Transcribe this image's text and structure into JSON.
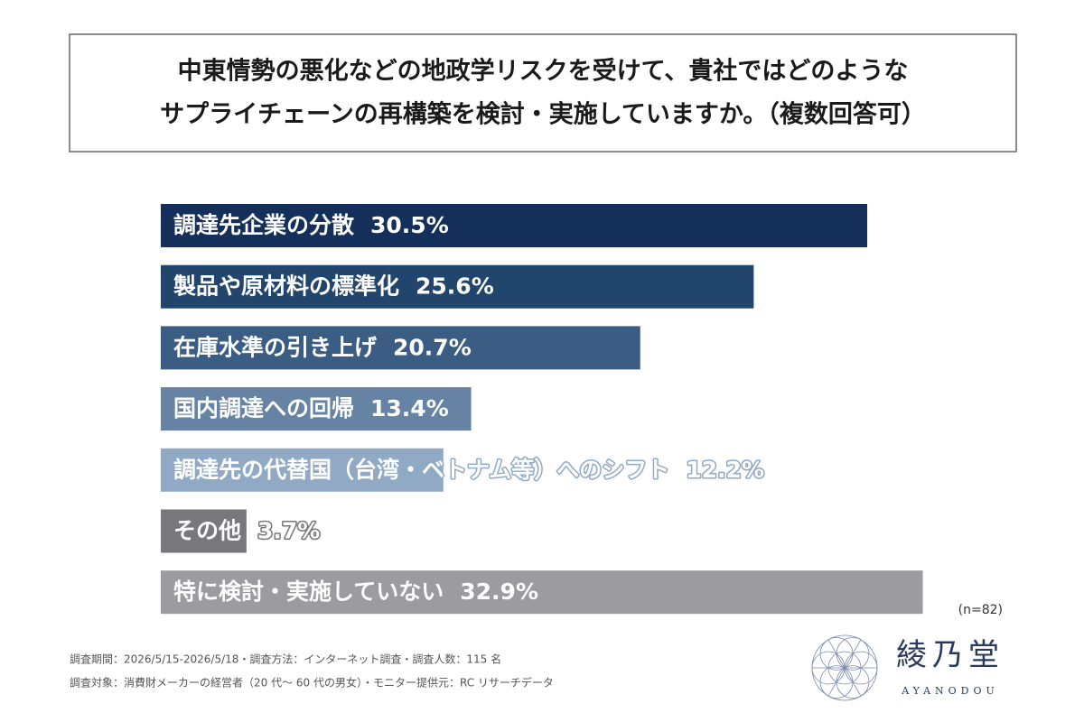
{
  "chart_data": {
    "type": "hbar",
    "title": [
      "中東情勢の悪化などの地政学リスクを受けて、貴社ではどのような",
      "サプライチェーンの再構築を検討・実施していますか。（複数回答可）"
    ],
    "categories": [
      "調達先企業の分散",
      "製品や原材料の標準化",
      "在庫水準の引き上げ",
      "国内調達への回帰",
      "調達先の代替国（台湾・ベトナム等）へのシフト",
      "その他",
      "特に検討・実施していない"
    ],
    "values": [
      30.5,
      25.6,
      20.7,
      13.4,
      12.2,
      3.7,
      32.9
    ],
    "value_labels": [
      "30.5%",
      "25.6%",
      "20.7%",
      "13.4%",
      "12.2%",
      "3.7%",
      "32.9%"
    ],
    "colors": [
      "#14305a",
      "#22456d",
      "#3b5d84",
      "#6783a4",
      "#90a9c4",
      "#77777c",
      "#9b9ba0"
    ],
    "note": "(n=82)",
    "footnotes": [
      "調査期間：2026/5/15-2026/5/18・調査方法：インターネット調査・調査人数：115 名",
      "調査対象：消費財メーカーの経営者（20 代～ 60 代の男女）・モニター提供元：RC リサーチデータ"
    ]
  },
  "brand": {
    "name": "綾乃堂",
    "romaji": "AYANODOU"
  }
}
